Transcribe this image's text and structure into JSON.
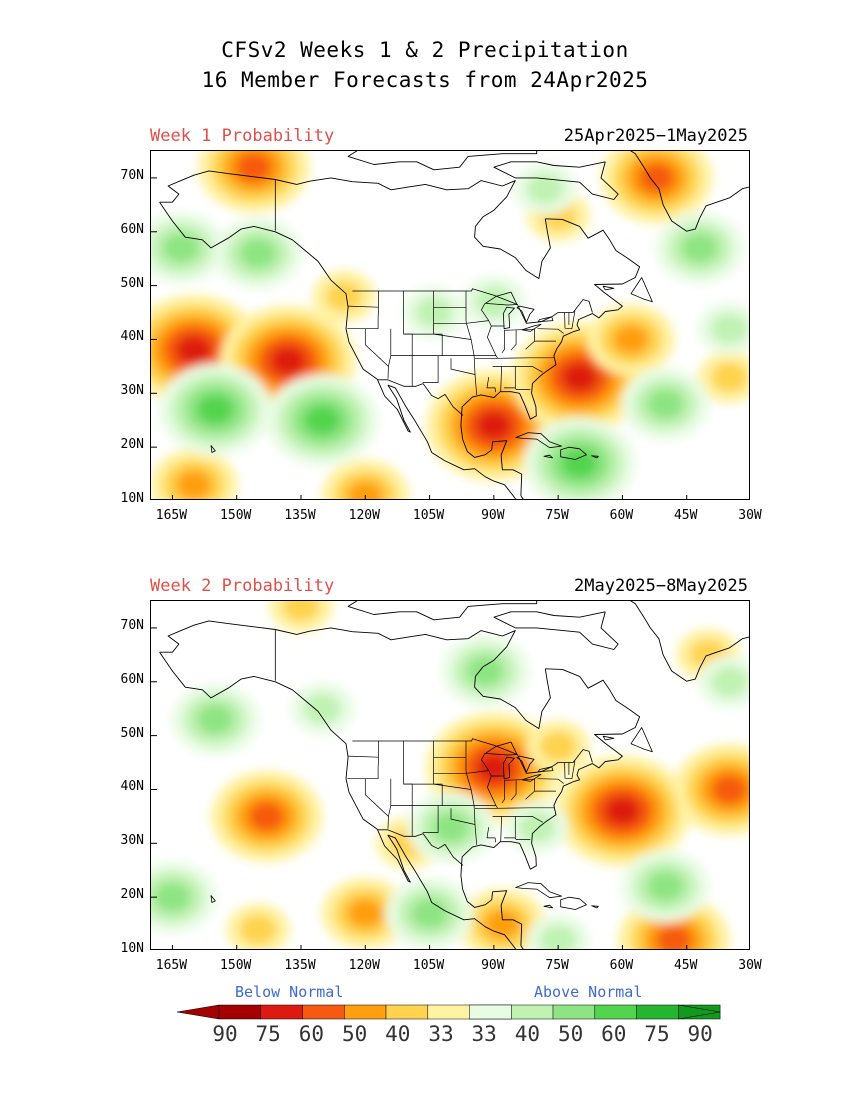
{
  "title_line1": "CFSv2 Weeks 1 & 2 Precipitation",
  "title_line2": "16 Member Forecasts from 24Apr2025",
  "panels": [
    {
      "label": "Week 1 Probability",
      "dates": "25Apr2025−1May2025",
      "anomalies": [
        {
          "lon": -160,
          "lat": 38,
          "category": "below",
          "level": 4
        },
        {
          "lon": -138,
          "lat": 36,
          "category": "below",
          "level": 4
        },
        {
          "lon": -90,
          "lat": 24,
          "category": "below",
          "level": 4
        },
        {
          "lon": -70,
          "lat": 33,
          "category": "below",
          "level": 4
        },
        {
          "lon": -146,
          "lat": 72,
          "category": "below",
          "level": 3
        },
        {
          "lon": -52,
          "lat": 70,
          "category": "below",
          "level": 3
        },
        {
          "lon": -160,
          "lat": 13,
          "category": "below",
          "level": 2
        },
        {
          "lon": -120,
          "lat": 11,
          "category": "below",
          "level": 2
        },
        {
          "lon": -125,
          "lat": 48,
          "category": "below",
          "level": 1
        },
        {
          "lon": -75,
          "lat": 63,
          "category": "below",
          "level": 1
        },
        {
          "lon": -35,
          "lat": 33,
          "category": "below",
          "level": 1
        },
        {
          "lon": -58,
          "lat": 40,
          "category": "below",
          "level": 2
        },
        {
          "lon": -130,
          "lat": 25,
          "category": "above",
          "level": 3
        },
        {
          "lon": -155,
          "lat": 27,
          "category": "above",
          "level": 3
        },
        {
          "lon": -145,
          "lat": 56,
          "category": "above",
          "level": 2
        },
        {
          "lon": -163,
          "lat": 57,
          "category": "above",
          "level": 2
        },
        {
          "lon": -50,
          "lat": 28,
          "category": "above",
          "level": 2
        },
        {
          "lon": -70,
          "lat": 17,
          "category": "above",
          "level": 3
        },
        {
          "lon": -42,
          "lat": 57,
          "category": "above",
          "level": 2
        },
        {
          "lon": -90,
          "lat": 47,
          "category": "above",
          "level": 1
        },
        {
          "lon": -35,
          "lat": 42,
          "category": "above",
          "level": 1
        },
        {
          "lon": -104,
          "lat": 45,
          "category": "above",
          "level": 1
        },
        {
          "lon": -78,
          "lat": 68,
          "category": "above",
          "level": 1
        }
      ]
    },
    {
      "label": "Week 2 Probability",
      "dates": "2May2025−8May2025",
      "anomalies": [
        {
          "lon": -90,
          "lat": 44,
          "category": "below",
          "level": 4
        },
        {
          "lon": -143,
          "lat": 35,
          "category": "below",
          "level": 3
        },
        {
          "lon": -60,
          "lat": 36,
          "category": "below",
          "level": 4
        },
        {
          "lon": -35,
          "lat": 40,
          "category": "below",
          "level": 3
        },
        {
          "lon": -48,
          "lat": 12,
          "category": "below",
          "level": 3
        },
        {
          "lon": -120,
          "lat": 17,
          "category": "below",
          "level": 2
        },
        {
          "lon": -88,
          "lat": 15,
          "category": "below",
          "level": 2
        },
        {
          "lon": -145,
          "lat": 14,
          "category": "below",
          "level": 1
        },
        {
          "lon": -135,
          "lat": 74,
          "category": "below",
          "level": 1
        },
        {
          "lon": -75,
          "lat": 48,
          "category": "below",
          "level": 1
        },
        {
          "lon": -40,
          "lat": 65,
          "category": "below",
          "level": 1
        },
        {
          "lon": -110,
          "lat": 30,
          "category": "below",
          "level": 1
        },
        {
          "lon": -100,
          "lat": 33,
          "category": "above",
          "level": 2
        },
        {
          "lon": -50,
          "lat": 22,
          "category": "above",
          "level": 2
        },
        {
          "lon": -165,
          "lat": 20,
          "category": "above",
          "level": 2
        },
        {
          "lon": -155,
          "lat": 53,
          "category": "above",
          "level": 2
        },
        {
          "lon": -92,
          "lat": 62,
          "category": "above",
          "level": 2
        },
        {
          "lon": -130,
          "lat": 55,
          "category": "above",
          "level": 1
        },
        {
          "lon": -105,
          "lat": 17,
          "category": "above",
          "level": 2
        },
        {
          "lon": -75,
          "lat": 12,
          "category": "above",
          "level": 1
        },
        {
          "lon": -35,
          "lat": 60,
          "category": "above",
          "level": 1
        },
        {
          "lon": -80,
          "lat": 33,
          "category": "above",
          "level": 1
        }
      ]
    }
  ],
  "y_ticks": [
    "70N",
    "60N",
    "50N",
    "40N",
    "30N",
    "20N",
    "10N"
  ],
  "x_ticks": [
    "165W",
    "150W",
    "135W",
    "120W",
    "105W",
    "90W",
    "75W",
    "60W",
    "45W",
    "30W"
  ],
  "map_extent": {
    "lon": [
      -170,
      -30
    ],
    "lat": [
      10,
      75
    ]
  },
  "legend": {
    "below_label": "Below Normal",
    "above_label": "Above Normal",
    "colorbar_values": [
      "90",
      "75",
      "60",
      "50",
      "40",
      "33",
      "33",
      "40",
      "50",
      "60",
      "75",
      "90"
    ],
    "below_colors": [
      "#a50000",
      "#dd1a10",
      "#f55a10",
      "#ff9f10",
      "#ffd34d",
      "#fff2a3"
    ],
    "neutral_color": "#ffffff",
    "above_colors": [
      "#e8fbe3",
      "#c0f2b2",
      "#8ee482",
      "#52d44e",
      "#26b52e",
      "#119a1e"
    ]
  }
}
